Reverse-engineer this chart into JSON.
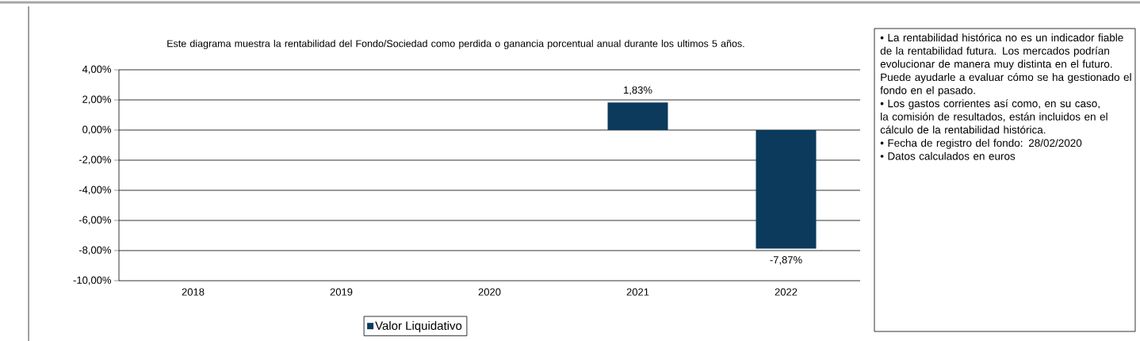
{
  "chart_data": {
    "type": "bar",
    "title": "Este diagrama muestra la rentabilidad del Fondo/Sociedad como perdida o ganancia porcentual anual durante los ultimos 5 años.",
    "categories": [
      "2018",
      "2019",
      "2020",
      "2021",
      "2022"
    ],
    "series": [
      {
        "name": "Valor Liquidativo",
        "color": "#0b3a5c",
        "values": [
          null,
          null,
          null,
          1.83,
          -7.87
        ],
        "value_labels": [
          null,
          null,
          null,
          "1,83%",
          "-7,87%"
        ]
      }
    ],
    "ylim": [
      -10,
      4
    ],
    "yticks": [
      {
        "value": 4,
        "label": "4,00%"
      },
      {
        "value": 2,
        "label": "2,00%"
      },
      {
        "value": 0,
        "label": "0,00%"
      },
      {
        "value": -2,
        "label": "-2,00%"
      },
      {
        "value": -4,
        "label": "-4,00%"
      },
      {
        "value": -6,
        "label": "-6,00%"
      },
      {
        "value": -8,
        "label": "-8,00%"
      },
      {
        "value": -10,
        "label": "-10,00%"
      }
    ],
    "grid": "y",
    "legend": "bottom",
    "annotations": [
      "• La rentabilidad histórica no es un indicador fiable de la rentabilidad futura. Los mercados podrían evolucionar de manera muy distinta en el futuro. Puede ayudarle a evaluar cómo se ha gestionado el fondo en el pasado.",
      "• Los gastos corrientes así como, en su caso, la comisión de resultados, están incluidos en el cálculo de la rentabilidad histórica.",
      "• Fecha de registro del fondo: 28/02/2020",
      "• Datos calculados en euros"
    ]
  }
}
